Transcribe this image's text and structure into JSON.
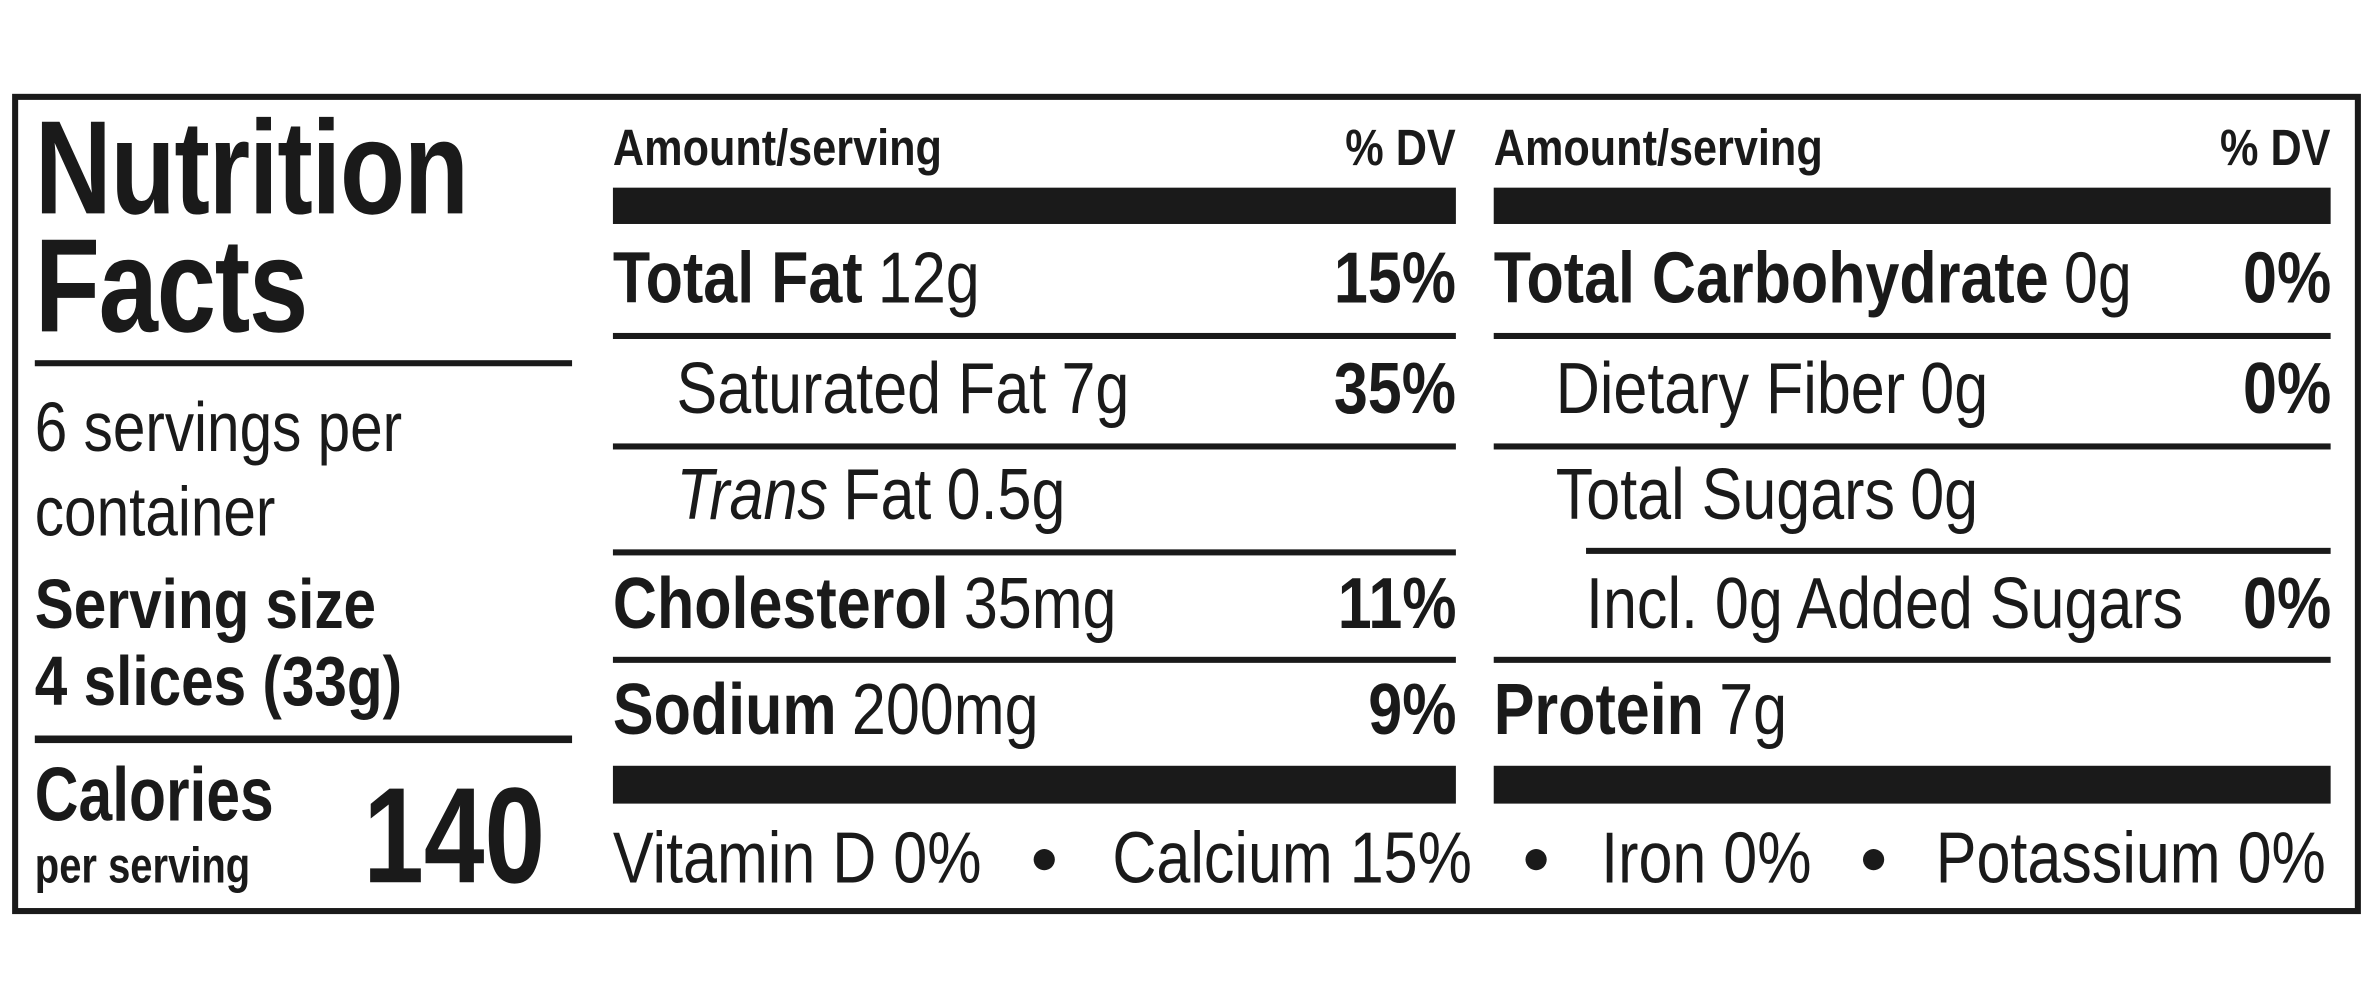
{
  "title": "Nutrition Facts",
  "servings": "6 servings per container",
  "serving_size_label": "Serving size",
  "serving_size": "4 slices (33g)",
  "calories_label": "Calories",
  "calories_sub": "per serving",
  "calories": 140,
  "columns": [
    {
      "header_amount": "Amount/serving",
      "header_dv": "% DV",
      "rows": [
        {
          "name": "Total Fat",
          "amount": "12g",
          "dv": "15%"
        },
        {
          "name": "Saturated Fat",
          "amount": "7g",
          "dv": "35%"
        },
        {
          "name_italic": "Trans",
          "name": "Fat",
          "amount": "0.5g"
        },
        {
          "name": "Cholesterol",
          "amount": "35mg",
          "dv": "11%"
        },
        {
          "name": "Sodium",
          "amount": "200mg",
          "dv": "9%"
        }
      ]
    },
    {
      "header_amount": "Amount/serving",
      "header_dv": "% DV",
      "rows": [
        {
          "name": "Total Carbohydrate",
          "amount": "0g",
          "dv": "0%"
        },
        {
          "name": "Dietary Fiber",
          "amount": "0g",
          "dv": "0%"
        },
        {
          "name": "Total Sugars",
          "amount": "0g"
        },
        {
          "name": "Incl. 0g Added Sugars",
          "dv": "0%"
        },
        {
          "name": "Protein",
          "amount": "7g"
        }
      ]
    }
  ],
  "footer": [
    "Vitamin D 0%",
    "Calcium 15%",
    "Iron 0%",
    "Potassium 0%"
  ]
}
